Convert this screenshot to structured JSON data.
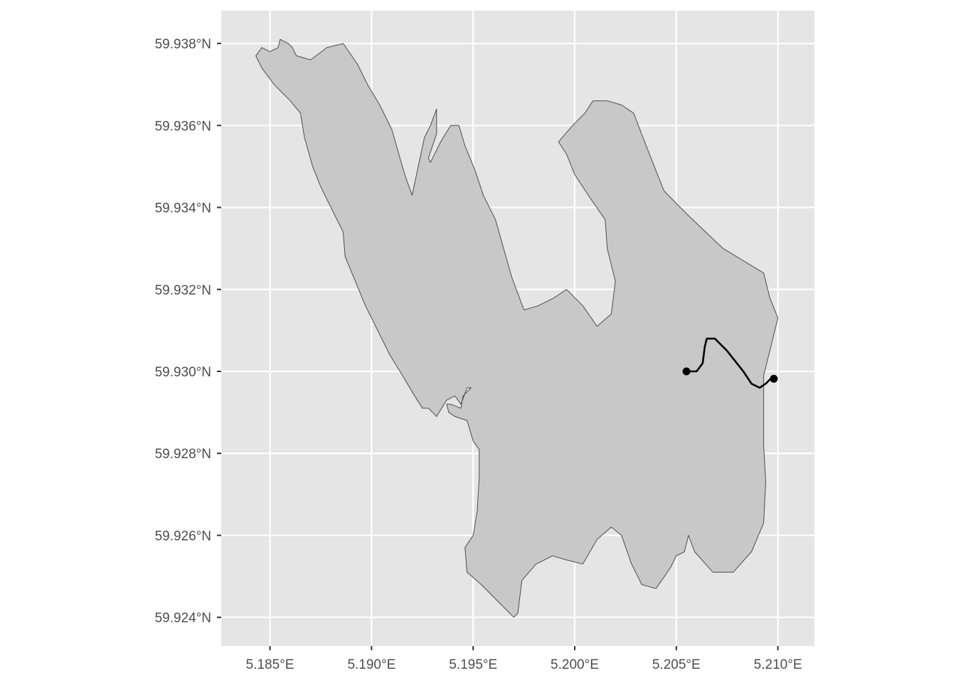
{
  "map": {
    "type": "map",
    "projection": "geographic",
    "xlim": [
      5.1826,
      5.2118
    ],
    "ylim": [
      59.9233,
      59.9388
    ],
    "grid": true,
    "x_ticks": [
      {
        "value": 5.185,
        "label": "5.185°E"
      },
      {
        "value": 5.19,
        "label": "5.190°E"
      },
      {
        "value": 5.195,
        "label": "5.195°E"
      },
      {
        "value": 5.2,
        "label": "5.200°E"
      },
      {
        "value": 5.205,
        "label": "5.205°E"
      },
      {
        "value": 5.21,
        "label": "5.210°E"
      }
    ],
    "y_ticks": [
      {
        "value": 59.938,
        "label": "59.938°N"
      },
      {
        "value": 59.936,
        "label": "59.936°N"
      },
      {
        "value": 59.934,
        "label": "59.934°N"
      },
      {
        "value": 59.932,
        "label": "59.932°N"
      },
      {
        "value": 59.93,
        "label": "59.930°N"
      },
      {
        "value": 59.928,
        "label": "59.928°N"
      },
      {
        "value": 59.926,
        "label": "59.926°N"
      },
      {
        "value": 59.924,
        "label": "59.924°N"
      }
    ],
    "colors": {
      "panel_background": "#e5e5e5",
      "grid_line": "#ffffff",
      "land_fill": "#c8c8c8",
      "land_outline": "#4d4d4d",
      "route": "#000000"
    },
    "island_outline": [
      [
        5.1843,
        59.9377
      ],
      [
        5.1846,
        59.9379
      ],
      [
        5.185,
        59.9378
      ],
      [
        5.1854,
        59.9379
      ],
      [
        5.1855,
        59.9381
      ],
      [
        5.1859,
        59.938
      ],
      [
        5.1861,
        59.9379
      ],
      [
        5.1863,
        59.9377
      ],
      [
        5.187,
        59.9376
      ],
      [
        5.1878,
        59.9379
      ],
      [
        5.1886,
        59.938
      ],
      [
        5.1893,
        59.9375
      ],
      [
        5.1898,
        59.937
      ],
      [
        5.1904,
        59.9365
      ],
      [
        5.191,
        59.9359
      ],
      [
        5.1914,
        59.9352
      ],
      [
        5.1917,
        59.9347
      ],
      [
        5.192,
        59.9343
      ],
      [
        5.1923,
        59.935
      ],
      [
        5.1926,
        59.9357
      ],
      [
        5.1929,
        59.936
      ],
      [
        5.1932,
        59.9364
      ],
      [
        5.1932,
        59.9358
      ],
      [
        5.1928,
        59.9352
      ],
      [
        5.1929,
        59.9351
      ],
      [
        5.1934,
        59.9356
      ],
      [
        5.1939,
        59.936
      ],
      [
        5.1943,
        59.936
      ],
      [
        5.1946,
        59.9355
      ],
      [
        5.1951,
        59.9349
      ],
      [
        5.1955,
        59.9343
      ],
      [
        5.1961,
        59.9337
      ],
      [
        5.1965,
        59.933
      ],
      [
        5.1969,
        59.9323
      ],
      [
        5.1975,
        59.9315
      ],
      [
        5.1982,
        59.9316
      ],
      [
        5.199,
        59.9318
      ],
      [
        5.1996,
        59.932
      ],
      [
        5.2004,
        59.9316
      ],
      [
        5.2011,
        59.9311
      ],
      [
        5.2018,
        59.9314
      ],
      [
        5.202,
        59.9322
      ],
      [
        5.2016,
        59.933
      ],
      [
        5.2015,
        59.9337
      ],
      [
        5.2008,
        59.9342
      ],
      [
        5.2,
        59.9348
      ],
      [
        5.1996,
        59.9353
      ],
      [
        5.1992,
        59.9356
      ],
      [
        5.1999,
        59.936
      ],
      [
        5.2005,
        59.9363
      ],
      [
        5.2009,
        59.9366
      ],
      [
        5.2016,
        59.9366
      ],
      [
        5.2023,
        59.9365
      ],
      [
        5.2029,
        59.9363
      ],
      [
        5.2036,
        59.9354
      ],
      [
        5.2044,
        59.9344
      ],
      [
        5.2056,
        59.9338
      ],
      [
        5.2073,
        59.933
      ],
      [
        5.2093,
        59.9324
      ],
      [
        5.2096,
        59.9318
      ],
      [
        5.21,
        59.9313
      ],
      [
        5.2096,
        59.9305
      ],
      [
        5.2093,
        59.9299
      ],
      [
        5.2093,
        59.9291
      ],
      [
        5.2093,
        59.9282
      ],
      [
        5.2094,
        59.9273
      ],
      [
        5.2093,
        59.9263
      ],
      [
        5.2087,
        59.9256
      ],
      [
        5.2078,
        59.9251
      ],
      [
        5.2068,
        59.9251
      ],
      [
        5.2059,
        59.9256
      ],
      [
        5.2056,
        59.926
      ],
      [
        5.2054,
        59.9256
      ],
      [
        5.205,
        59.9255
      ],
      [
        5.2047,
        59.9252
      ],
      [
        5.204,
        59.9247
      ],
      [
        5.2033,
        59.9248
      ],
      [
        5.2028,
        59.9253
      ],
      [
        5.2023,
        59.926
      ],
      [
        5.2018,
        59.9262
      ],
      [
        5.2011,
        59.9259
      ],
      [
        5.2004,
        59.9253
      ],
      [
        5.1996,
        59.9254
      ],
      [
        5.1989,
        59.9255
      ],
      [
        5.1981,
        59.9253
      ],
      [
        5.1974,
        59.9249
      ],
      [
        5.1972,
        59.9241
      ],
      [
        5.197,
        59.924
      ],
      [
        5.1962,
        59.9244
      ],
      [
        5.1954,
        59.9248
      ],
      [
        5.1947,
        59.9251
      ],
      [
        5.1946,
        59.9257
      ],
      [
        5.195,
        59.926
      ],
      [
        5.1952,
        59.9266
      ],
      [
        5.1953,
        59.9274
      ],
      [
        5.1953,
        59.9281
      ],
      [
        5.195,
        59.9283
      ],
      [
        5.1947,
        59.9288
      ],
      [
        5.1941,
        59.9289
      ],
      [
        5.1938,
        59.929
      ],
      [
        5.1937,
        59.9292
      ],
      [
        5.1939,
        59.9292
      ],
      [
        5.1944,
        59.9291
      ],
      [
        5.1945,
        59.9294
      ],
      [
        5.1949,
        59.9296
      ],
      [
        5.1947,
        59.9296
      ],
      [
        5.1944,
        59.9292
      ],
      [
        5.1941,
        59.9294
      ],
      [
        5.1937,
        59.9293
      ],
      [
        5.1932,
        59.9289
      ],
      [
        5.1928,
        59.9291
      ],
      [
        5.1925,
        59.9291
      ],
      [
        5.192,
        59.9295
      ],
      [
        5.1914,
        59.93
      ],
      [
        5.1909,
        59.9304
      ],
      [
        5.1903,
        59.931
      ],
      [
        5.1897,
        59.9316
      ],
      [
        5.1892,
        59.9322
      ],
      [
        5.1887,
        59.9328
      ],
      [
        5.1886,
        59.9334
      ],
      [
        5.188,
        59.934
      ],
      [
        5.1875,
        59.9345
      ],
      [
        5.1871,
        59.935
      ],
      [
        5.1867,
        59.9357
      ],
      [
        5.1865,
        59.9363
      ],
      [
        5.186,
        59.9366
      ],
      [
        5.1852,
        59.937
      ],
      [
        5.1846,
        59.9374
      ],
      [
        5.1843,
        59.9377
      ]
    ],
    "route": [
      [
        5.2055,
        59.93
      ],
      [
        5.206,
        59.93
      ],
      [
        5.2063,
        59.9302
      ],
      [
        5.2064,
        59.9306
      ],
      [
        5.2065,
        59.9308
      ],
      [
        5.2069,
        59.9308
      ],
      [
        5.2075,
        59.9305
      ],
      [
        5.2083,
        59.93
      ],
      [
        5.2087,
        59.9297
      ],
      [
        5.2091,
        59.9296
      ],
      [
        5.2094,
        59.9297
      ],
      [
        5.2096,
        59.9298
      ]
    ],
    "route_endpoints": [
      {
        "lon": 5.2055,
        "lat": 59.93
      },
      {
        "lon": 5.2098,
        "lat": 59.92982
      }
    ]
  }
}
